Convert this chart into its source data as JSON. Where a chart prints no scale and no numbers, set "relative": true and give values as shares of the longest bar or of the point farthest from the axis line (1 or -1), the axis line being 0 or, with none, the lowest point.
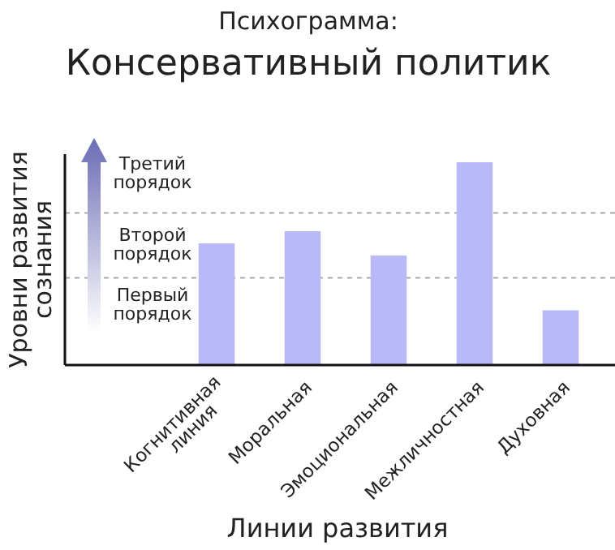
{
  "chart_data": {
    "type": "bar",
    "title": "Психограмма:",
    "subtitle": "Консервативный политик",
    "xlabel": "Линии развития",
    "ylabel": "Уровни развития сознания",
    "categories": [
      "Когнитивная линия",
      "Моральная",
      "Эмоциональная",
      "Межличностная",
      "Духовная"
    ],
    "values": [
      0.6,
      0.66,
      0.54,
      1,
      0.27
    ],
    "color": "#b9b9f7",
    "relative": true,
    "ref_lines": [
      {
        "axis": "y",
        "value": 0.43,
        "line_style": "dashed",
        "color": "#aaaaaa"
      },
      {
        "axis": "y",
        "value": 0.75,
        "line_style": "dashed",
        "color": "#aaaaaa"
      }
    ],
    "annotations": [
      "Третий порядок",
      "Второй порядок",
      "Первый порядок"
    ]
  }
}
